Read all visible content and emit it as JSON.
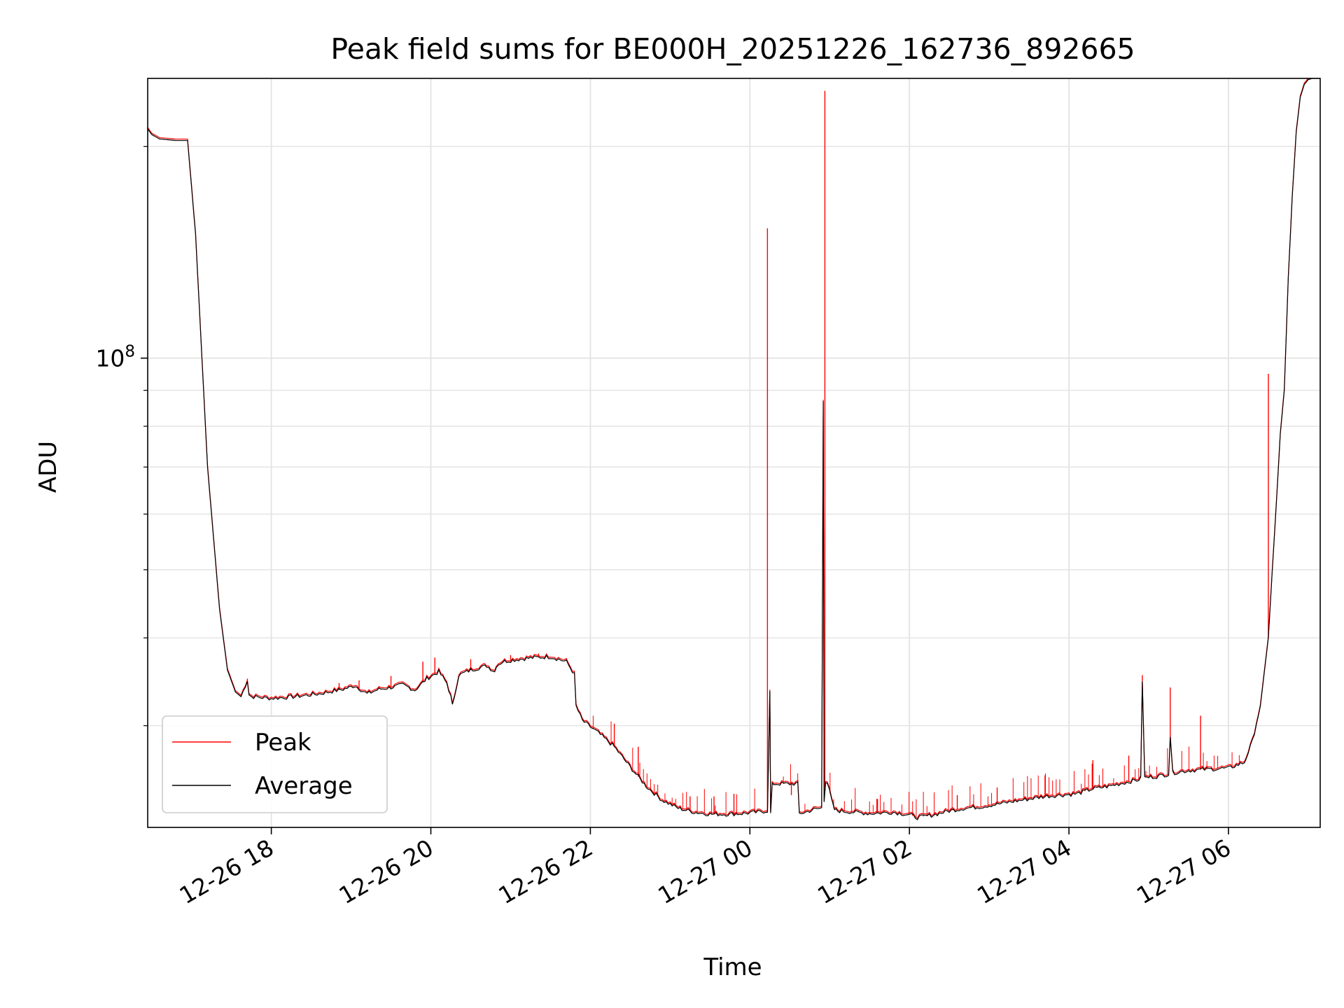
{
  "chart_data": {
    "type": "line",
    "title": "Peak field sums for BE000H_20251226_162736_892665",
    "xlabel": "Time",
    "ylabel": "ADU",
    "yscale": "log",
    "ylim": [
      21500000,
      250000000
    ],
    "xlim_hours": [
      16.45,
      31.15
    ],
    "grid": true,
    "x_ticks": [
      {
        "hour": 18,
        "label": "12-26 18"
      },
      {
        "hour": 20,
        "label": "12-26 20"
      },
      {
        "hour": 22,
        "label": "12-26 22"
      },
      {
        "hour": 24,
        "label": "12-27 00"
      },
      {
        "hour": 26,
        "label": "12-27 02"
      },
      {
        "hour": 28,
        "label": "12-27 04"
      },
      {
        "hour": 30,
        "label": "12-27 06"
      }
    ],
    "y_major_ticks": [
      {
        "value": 100000000,
        "base": "10",
        "exp": "8"
      }
    ],
    "y_minor_ticks": [
      30000000,
      40000000,
      50000000,
      60000000,
      70000000,
      80000000,
      90000000,
      200000000
    ],
    "legend": {
      "position": "lower-left",
      "entries": [
        {
          "name": "Peak",
          "color": "#ff0000"
        },
        {
          "name": "Average",
          "color": "#000000"
        }
      ]
    },
    "series": [
      {
        "name": "Average",
        "color": "#000000",
        "x_hours": [
          16.45,
          16.5,
          16.6,
          16.8,
          16.95,
          17.05,
          17.2,
          17.35,
          17.45,
          17.55,
          17.62,
          17.7,
          17.72,
          17.75,
          18.0,
          18.3,
          18.6,
          18.9,
          19.05,
          19.2,
          19.35,
          19.5,
          19.65,
          19.8,
          19.95,
          20.1,
          20.2,
          20.25,
          20.27,
          20.35,
          20.5,
          20.7,
          20.8,
          20.82,
          20.9,
          21.1,
          21.3,
          21.5,
          21.7,
          21.8,
          21.82,
          21.9,
          22.1,
          22.3,
          22.5,
          22.7,
          22.9,
          23.1,
          23.3,
          23.5,
          23.7,
          23.9,
          24.1,
          24.22,
          24.25,
          24.26,
          24.28,
          24.3,
          24.5,
          24.6,
          24.62,
          24.7,
          24.8,
          24.9,
          24.92,
          24.93,
          24.95,
          24.97,
          25.05,
          25.06,
          25.1,
          25.3,
          25.5,
          25.8,
          26.0,
          26.1,
          26.3,
          26.5,
          26.7,
          26.9,
          27.1,
          27.3,
          27.5,
          27.7,
          27.9,
          28.1,
          28.3,
          28.5,
          28.7,
          28.85,
          28.9,
          28.92,
          28.95,
          29.1,
          29.25,
          29.27,
          29.3,
          29.5,
          29.7,
          30.0,
          30.2,
          30.3,
          30.4,
          30.5,
          30.55,
          30.6,
          30.65,
          30.7,
          30.75,
          30.8,
          30.85,
          30.9,
          30.95,
          31.0,
          31.05,
          31.1,
          31.15
        ],
        "values": [
          212000000,
          208000000,
          205000000,
          204000000,
          204000000,
          150000000,
          70000000,
          44000000,
          36000000,
          33500000,
          33000000,
          34800000,
          33200000,
          33000000,
          32800000,
          33000000,
          33300000,
          33800000,
          34200000,
          33300000,
          33800000,
          34000000,
          34300000,
          33700000,
          35000000,
          35800000,
          34500000,
          33000000,
          32000000,
          35400000,
          36000000,
          36500000,
          35800000,
          36500000,
          37000000,
          37300000,
          37500000,
          37600000,
          37000000,
          35500000,
          32000000,
          30500000,
          29300000,
          28000000,
          26200000,
          24600000,
          23500000,
          22900000,
          22600000,
          22450000,
          22450000,
          22500000,
          22600000,
          22700000,
          33500000,
          22500000,
          24700000,
          24800000,
          24800000,
          24800000,
          22500000,
          22600000,
          22800000,
          22900000,
          87000000,
          23500000,
          25000000,
          24900000,
          22900000,
          22800000,
          22700000,
          22600000,
          22500000,
          22600000,
          22400000,
          22200000,
          22400000,
          22700000,
          22900000,
          23000000,
          23200000,
          23400000,
          23600000,
          23800000,
          23900000,
          24000000,
          24400000,
          24600000,
          24900000,
          25100000,
          25200000,
          34800000,
          25300000,
          25400000,
          25600000,
          29000000,
          25700000,
          25900000,
          26000000,
          26100000,
          26600000,
          28500000,
          32000000,
          40000000,
          50000000,
          62000000,
          78000000,
          90000000,
          130000000,
          170000000,
          210000000,
          235000000,
          245000000,
          249000000,
          250000000,
          250000000,
          250000000
        ]
      },
      {
        "name": "Peak",
        "color": "#ff0000",
        "x_hours": [
          17.7,
          18.85,
          19.1,
          19.5,
          19.9,
          20.05,
          20.5,
          21.0,
          21.35,
          22.3,
          22.6,
          23.25,
          23.55,
          23.8,
          24.22,
          24.52,
          24.94,
          25.6,
          26.6,
          27.1,
          27.7,
          28.3,
          28.75,
          28.92,
          29.27,
          29.65,
          30.5
        ],
        "values": [
          35000000,
          34500000,
          34800000,
          35300000,
          37000000,
          37500000,
          37300000,
          37800000,
          38000000,
          30200000,
          28000000,
          23800000,
          23800000,
          24000000,
          153000000,
          23900000,
          240000000,
          23600000,
          23900000,
          24500000,
          25500000,
          26800000,
          27200000,
          35400000,
          34000000,
          31000000,
          95000000
        ]
      }
    ]
  }
}
